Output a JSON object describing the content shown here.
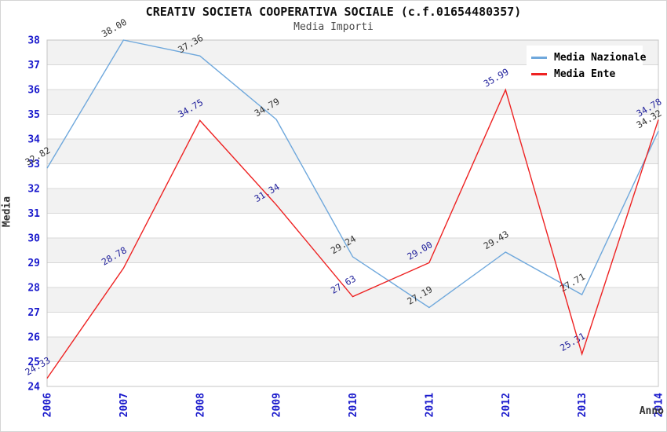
{
  "chart_data": {
    "type": "line",
    "title": "CREATIV SOCIETA COOPERATIVA SOCIALE (c.f.01654480357)",
    "subtitle": "Media Importi",
    "xlabel": "Anno",
    "ylabel": "Media",
    "ylim": [
      24,
      38
    ],
    "y_tick_step": 1,
    "grid": true,
    "legend_position": "top-right",
    "categories": [
      "2006",
      "2007",
      "2008",
      "2009",
      "2010",
      "2011",
      "2012",
      "2013",
      "2014"
    ],
    "series": [
      {
        "name": "Media Nazionale",
        "color": "#6fa8dc",
        "label_color": "#333333",
        "values": [
          32.82,
          38.0,
          37.36,
          34.79,
          29.24,
          27.19,
          29.43,
          27.71,
          34.32
        ]
      },
      {
        "name": "Media Ente",
        "color": "#ee2222",
        "label_color": "#22229c",
        "values": [
          24.33,
          28.78,
          34.75,
          31.34,
          27.63,
          29.0,
          35.99,
          25.31,
          34.78
        ]
      }
    ],
    "axis_tick_color": "#1a1acc",
    "band_colors": [
      "#ffffff",
      "#f2f2f2"
    ],
    "gridline_color": "#d8d8d8",
    "plot_border_color": "#c4c4c4"
  }
}
